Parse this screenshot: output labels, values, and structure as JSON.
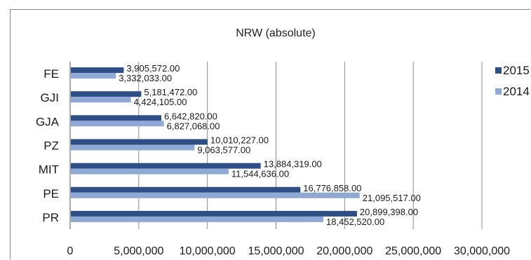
{
  "chart_data": {
    "type": "bar",
    "orientation": "horizontal",
    "title": "NRW (absolute)",
    "categories": [
      "FE",
      "GJI",
      "GJA",
      "PZ",
      "MIT",
      "PE",
      "PR"
    ],
    "series": [
      {
        "name": "2015",
        "color": "#2e4f86",
        "values": [
          3905572,
          5181472,
          6642820,
          10010227,
          13884319,
          16776858,
          20899398
        ],
        "labels": [
          "3,905,572.00",
          "5,181,472.00",
          "6,642,820.00",
          "10,010,227.00",
          "13,884,319.00",
          "16,776,858.00",
          "20,899,398.00"
        ]
      },
      {
        "name": "2014",
        "color": "#8fa8d4",
        "values": [
          3332033,
          4424105,
          6827068,
          9063577,
          11544636,
          21095517,
          18452520
        ],
        "labels": [
          "3,332,033.00",
          "4,424,105.00",
          "6,827,068.00",
          "9,063,577.00",
          "11,544,636.00",
          "21,095,517.00",
          "18,452,520.00"
        ]
      }
    ],
    "xlim": [
      0,
      30000000
    ],
    "xticks": [
      {
        "value": 0,
        "label": "0"
      },
      {
        "value": 5000000,
        "label": "5,000,000"
      },
      {
        "value": 10000000,
        "label": "10,000,000"
      },
      {
        "value": 15000000,
        "label": "15,000,000"
      },
      {
        "value": 20000000,
        "label": "20,000,000"
      },
      {
        "value": 25000000,
        "label": "25,000,000"
      },
      {
        "value": 30000000,
        "label": "30,000,000"
      }
    ],
    "grid": "vertical",
    "legend": "right"
  }
}
